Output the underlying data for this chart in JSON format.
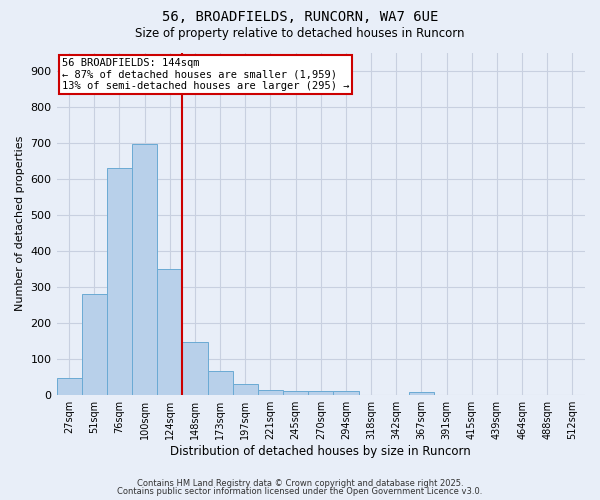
{
  "title1": "56, BROADFIELDS, RUNCORN, WA7 6UE",
  "title2": "Size of property relative to detached houses in Runcorn",
  "xlabel": "Distribution of detached houses by size in Runcorn",
  "ylabel": "Number of detached properties",
  "bar_labels": [
    "27sqm",
    "51sqm",
    "76sqm",
    "100sqm",
    "124sqm",
    "148sqm",
    "173sqm",
    "197sqm",
    "221sqm",
    "245sqm",
    "270sqm",
    "294sqm",
    "318sqm",
    "342sqm",
    "367sqm",
    "391sqm",
    "415sqm",
    "439sqm",
    "464sqm",
    "488sqm",
    "512sqm"
  ],
  "bar_values": [
    45,
    280,
    630,
    695,
    350,
    145,
    65,
    30,
    12,
    10,
    10,
    10,
    0,
    0,
    8,
    0,
    0,
    0,
    0,
    0,
    0
  ],
  "bar_color": "#b8d0ea",
  "bar_edge_color": "#6aaad4",
  "background_color": "#e8eef8",
  "grid_color": "#c8d0e0",
  "vline_color": "#cc0000",
  "annotation_text_line1": "56 BROADFIELDS: 144sqm",
  "annotation_text_line2": "← 87% of detached houses are smaller (1,959)",
  "annotation_text_line3": "13% of semi-detached houses are larger (295) →",
  "ylim": [
    0,
    950
  ],
  "yticks": [
    0,
    100,
    200,
    300,
    400,
    500,
    600,
    700,
    800,
    900
  ],
  "vline_bar_index": 5,
  "footer1": "Contains HM Land Registry data © Crown copyright and database right 2025.",
  "footer2": "Contains public sector information licensed under the Open Government Licence v3.0."
}
